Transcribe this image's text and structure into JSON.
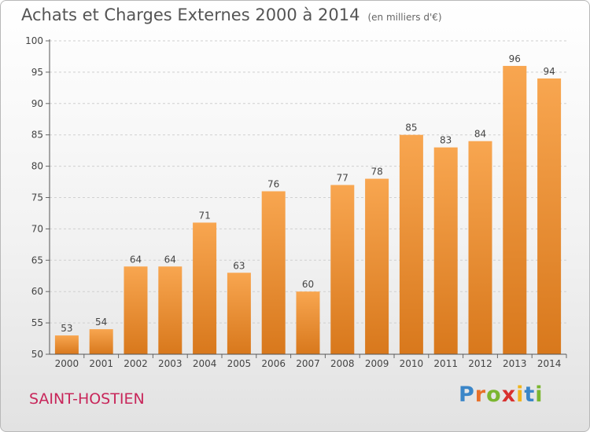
{
  "title": "Achats et Charges Externes 2000 à 2014",
  "subtitle": "(en milliers d'€)",
  "commune": "SAINT-HOSTIEN",
  "logo": {
    "text": "Proxiti",
    "letters": [
      "P",
      "r",
      "o",
      "x",
      "i",
      "t",
      "i"
    ],
    "colors": [
      "#3b86c8",
      "#e8702a",
      "#7bb630",
      "#d8302e",
      "#f2b41b",
      "#3b86c8",
      "#7bb630"
    ]
  },
  "chart_data": {
    "type": "bar",
    "categories": [
      "2000",
      "2001",
      "2002",
      "2003",
      "2004",
      "2005",
      "2006",
      "2007",
      "2008",
      "2009",
      "2010",
      "2011",
      "2012",
      "2013",
      "2014"
    ],
    "values": [
      53,
      54,
      64,
      64,
      71,
      63,
      76,
      60,
      77,
      78,
      85,
      83,
      84,
      96,
      94
    ],
    "ylim": [
      50,
      100
    ],
    "yticks": [
      50,
      55,
      60,
      65,
      70,
      75,
      80,
      85,
      90,
      95,
      100
    ],
    "grid": true,
    "bar_color_top": "#f8a650",
    "bar_color_bottom": "#d8781c"
  }
}
